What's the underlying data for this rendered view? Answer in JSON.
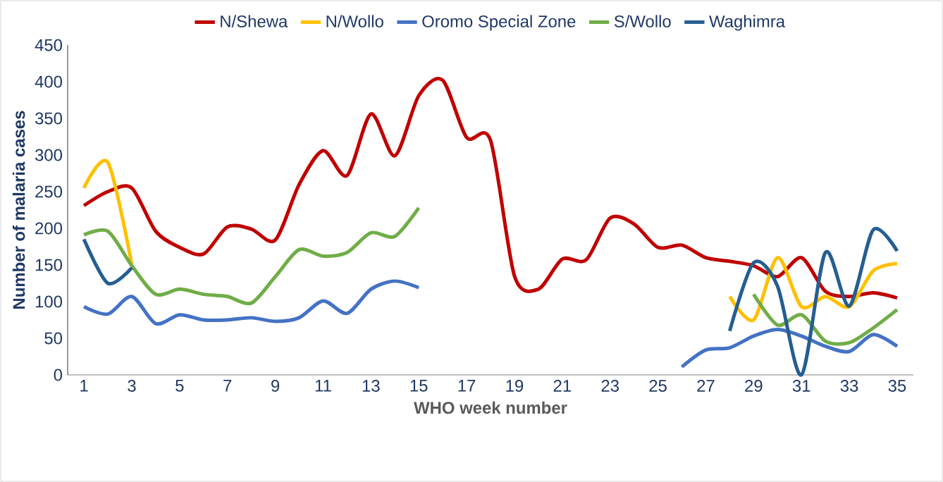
{
  "chart_data": {
    "type": "line",
    "xlabel": "WHO week  number",
    "ylabel": "Number of malaria cases",
    "categories": [
      "1",
      null,
      "3",
      null,
      "5",
      null,
      "7",
      null,
      "9",
      null,
      "11",
      null,
      "13",
      null,
      "15",
      null,
      "17",
      null,
      "19",
      null,
      "21",
      null,
      "23",
      null,
      "25",
      null,
      "27",
      null,
      "29",
      null,
      "31",
      null,
      "33",
      null,
      "35"
    ],
    "ylim": [
      0,
      450
    ],
    "yticks": [
      0,
      50,
      100,
      150,
      200,
      250,
      300,
      350,
      400,
      450
    ],
    "grid": false,
    "legend": "top",
    "marker": "none",
    "line_style": "solid",
    "series": [
      {
        "name": "N/Shewa",
        "color": "#c00000",
        "values": [
          231,
          250,
          255,
          196,
          174,
          165,
          202,
          199,
          184,
          260,
          306,
          272,
          356,
          299,
          381,
          402,
          324,
          320,
          135,
          117,
          158,
          157,
          214,
          206,
          174,
          177,
          160,
          155,
          149,
          134,
          160,
          114,
          107,
          112,
          105
        ]
      },
      {
        "name": "N/Wollo",
        "color": "#ffc000",
        "values": [
          255,
          290,
          151,
          null,
          null,
          null,
          null,
          null,
          null,
          null,
          null,
          null,
          null,
          null,
          null,
          null,
          null,
          null,
          null,
          null,
          null,
          null,
          null,
          null,
          null,
          null,
          null,
          107,
          75,
          160,
          93,
          107,
          93,
          142,
          152
        ]
      },
      {
        "name": "Oromo Special Zone",
        "color": "#4472c4",
        "values": [
          93,
          83,
          107,
          70,
          82,
          75,
          75,
          78,
          73,
          78,
          101,
          84,
          117,
          128,
          119,
          null,
          null,
          null,
          null,
          null,
          null,
          null,
          null,
          null,
          null,
          11,
          34,
          37,
          53,
          62,
          53,
          39,
          32,
          55,
          39
        ]
      },
      {
        "name": "S/Wollo",
        "color": "#70ad47",
        "values": [
          191,
          196,
          149,
          110,
          117,
          110,
          107,
          98,
          134,
          171,
          162,
          167,
          194,
          189,
          228,
          null,
          null,
          null,
          null,
          null,
          null,
          null,
          null,
          null,
          null,
          null,
          null,
          null,
          110,
          68,
          82,
          46,
          44,
          64,
          89
        ]
      },
      {
        "name": "Waghimra",
        "color": "#255e91",
        "values": [
          185,
          125,
          146,
          null,
          null,
          null,
          null,
          null,
          null,
          null,
          null,
          null,
          null,
          null,
          null,
          null,
          null,
          null,
          null,
          null,
          null,
          null,
          null,
          null,
          null,
          null,
          null,
          60,
          153,
          121,
          0,
          167,
          94,
          198,
          169
        ]
      }
    ]
  }
}
